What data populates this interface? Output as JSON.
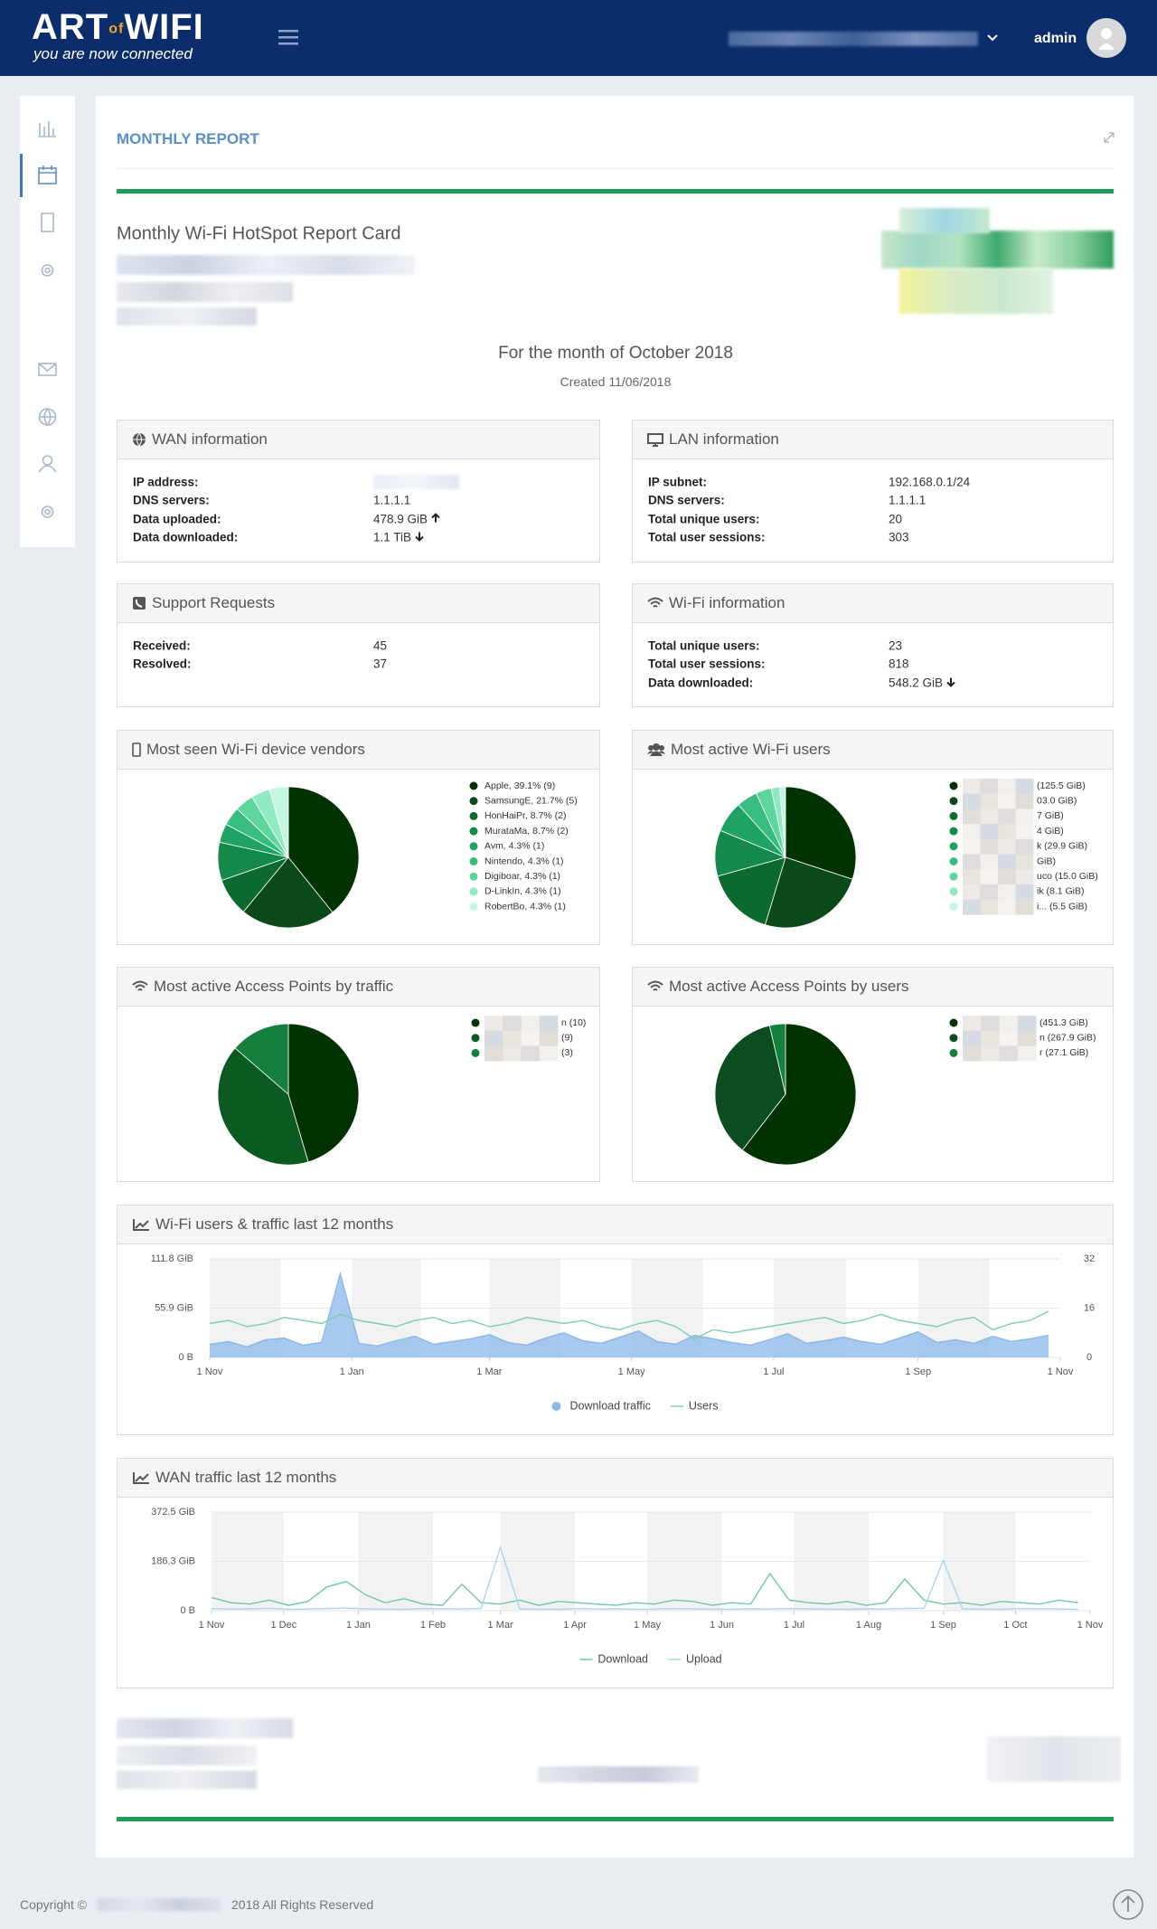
{
  "header": {
    "logo": [
      "ART",
      "of",
      "WIFI"
    ],
    "tagline": "you are now connected",
    "user": "admin"
  },
  "report": {
    "title": "MONTHLY REPORT",
    "card_title": "Monthly Wi-Fi HotSpot Report Card",
    "month": "For the month of October 2018",
    "created": "Created 11/06/2018"
  },
  "wan": {
    "title": "WAN information",
    "rows": [
      {
        "label": "IP address:"
      },
      {
        "label": "DNS servers:",
        "value": "1.1.1.1"
      },
      {
        "label": "Data uploaded:",
        "value": "478.9 GiB"
      },
      {
        "label": "Data downloaded:",
        "value": "1.1 TiB"
      }
    ]
  },
  "lan": {
    "title": "LAN information",
    "rows": [
      {
        "label": "IP subnet:",
        "value": "192.168.0.1/24"
      },
      {
        "label": "DNS servers:",
        "value": "1.1.1.1"
      },
      {
        "label": "Total unique users:",
        "value": "20"
      },
      {
        "label": "Total user sessions:",
        "value": "303"
      }
    ]
  },
  "support": {
    "title": "Support Requests",
    "rows": [
      {
        "label": "Received:",
        "value": "45"
      },
      {
        "label": "Resolved:",
        "value": "37"
      }
    ]
  },
  "wifi": {
    "title": "Wi-Fi information",
    "rows": [
      {
        "label": "Total unique users:",
        "value": "23"
      },
      {
        "label": "Total user sessions:",
        "value": "818"
      },
      {
        "label": "Data downloaded:",
        "value": "548.2 GiB"
      }
    ]
  },
  "chart_data": [
    {
      "type": "pie",
      "title": "Most seen Wi-Fi device vendors",
      "categories": [
        "Apple, 39.1% (9)",
        "SamsungE, 21.7% (5)",
        "HonHaiPr, 8.7% (2)",
        "MurataMa, 8.7% (2)",
        "Avm, 4.3% (1)",
        "Nintendo, 4.3% (1)",
        "Digiboar, 4.3% (1)",
        "D-LinkIn, 4.3% (1)",
        "RobertBo, 4.3% (1)"
      ],
      "values": [
        39.1,
        21.7,
        8.7,
        8.7,
        4.3,
        4.3,
        4.3,
        4.3,
        4.3
      ],
      "colors": [
        "#003300",
        "#0a4a1a",
        "#0d6a2e",
        "#13894a",
        "#1fa264",
        "#37bd80",
        "#5fd59e",
        "#8fe9c1",
        "#c4f7e2"
      ]
    },
    {
      "type": "pie",
      "title": "Most active Wi-Fi users",
      "categories": [
        "(125.5 GiB)",
        "03.0 GiB)",
        "7 GiB)",
        "4 GiB)",
        "k (29.9 GiB)",
        "GiB)",
        "uco (15.0 GiB)",
        "ik (8.1 GiB)",
        "i... (5.5 GiB)"
      ],
      "values": [
        125.5,
        103.0,
        67,
        44,
        29.9,
        20,
        15.0,
        8.1,
        5.5
      ],
      "colors": [
        "#003300",
        "#0a4a1a",
        "#0d6a2e",
        "#13894a",
        "#1fa264",
        "#37bd80",
        "#5fd59e",
        "#8fe9c1",
        "#c4f7e2"
      ]
    },
    {
      "type": "pie",
      "title": "Most active Access Points by traffic",
      "categories": [
        "n (10)",
        "(9)",
        "(3)"
      ],
      "values": [
        10,
        9,
        3
      ],
      "colors": [
        "#003300",
        "#0b5a22",
        "#15803d"
      ]
    },
    {
      "type": "pie",
      "title": "Most active Access Points by users",
      "categories": [
        "(451.3 GiB)",
        "n (267.9 GiB)",
        "r (27.1 GiB)"
      ],
      "values": [
        451.3,
        267.9,
        27.1
      ],
      "colors": [
        "#003300",
        "#0b4d1f",
        "#15803d"
      ]
    },
    {
      "type": "line",
      "title": "Wi-Fi users & traffic last 12 months",
      "grid": true,
      "x": [
        0,
        8,
        16,
        24,
        32,
        40,
        48,
        56,
        64,
        72,
        80,
        88,
        96,
        104,
        112,
        120,
        128,
        136,
        144,
        152,
        160,
        168,
        176,
        184,
        192,
        200,
        208,
        216,
        224,
        232,
        240,
        248,
        256,
        264,
        272,
        280,
        288,
        296,
        304,
        312,
        320,
        328,
        336,
        344,
        352,
        360
      ],
      "xlim": [
        0,
        365
      ],
      "xticks": [
        {
          "value": 0,
          "label": "1 Nov"
        },
        {
          "value": 61,
          "label": "1 Jan"
        },
        {
          "value": 120,
          "label": "1 Mar"
        },
        {
          "value": 181,
          "label": "1 May"
        },
        {
          "value": 242,
          "label": "1 Jul"
        },
        {
          "value": 304,
          "label": "1 Sep"
        },
        {
          "value": 365,
          "label": "1 Nov"
        }
      ],
      "ylim": [
        0,
        111.8
      ],
      "yticks": [
        {
          "value": 0,
          "label": "0 B"
        },
        {
          "value": 55.9,
          "label": "55.9 GiB"
        },
        {
          "value": 111.8,
          "label": "111.8 GiB"
        }
      ],
      "y2lim": [
        0,
        32
      ],
      "y2ticks": [
        0,
        16,
        32
      ],
      "series": [
        {
          "name": "Download traffic",
          "style": "area",
          "color": "#8ab8e8",
          "values": [
            15,
            18,
            12,
            20,
            22,
            14,
            17,
            95,
            16,
            13,
            19,
            24,
            15,
            18,
            21,
            26,
            17,
            14,
            22,
            28,
            19,
            16,
            23,
            30,
            18,
            15,
            25,
            21,
            17,
            14,
            20,
            27,
            16,
            19,
            23,
            18,
            15,
            22,
            29,
            17,
            20,
            16,
            24,
            18,
            21,
            25
          ]
        },
        {
          "name": "Users",
          "style": "line",
          "axis": "y2",
          "color": "#7ccfae",
          "values": [
            11,
            12,
            10,
            11,
            13,
            12,
            11,
            14,
            12,
            11,
            10,
            12,
            13,
            11,
            12,
            10,
            11,
            13,
            12,
            11,
            12,
            10,
            9,
            11,
            12,
            10,
            6,
            9,
            8,
            9,
            10,
            11,
            12,
            13,
            11,
            12,
            14,
            12,
            11,
            10,
            12,
            13,
            9,
            11,
            12,
            15
          ]
        }
      ]
    },
    {
      "type": "line",
      "title": "WAN traffic last 12 months",
      "grid": true,
      "x": [
        0,
        8,
        16,
        24,
        32,
        40,
        48,
        56,
        64,
        72,
        80,
        88,
        96,
        104,
        112,
        120,
        128,
        136,
        144,
        152,
        160,
        168,
        176,
        184,
        192,
        200,
        208,
        216,
        224,
        232,
        240,
        248,
        256,
        264,
        272,
        280,
        288,
        296,
        304,
        312,
        320,
        328,
        336,
        344,
        352,
        360
      ],
      "xlim": [
        0,
        365
      ],
      "xticks": [
        {
          "value": 0,
          "label": "1 Nov"
        },
        {
          "value": 30,
          "label": "1 Dec"
        },
        {
          "value": 61,
          "label": "1 Jan"
        },
        {
          "value": 92,
          "label": "1 Feb"
        },
        {
          "value": 120,
          "label": "1 Mar"
        },
        {
          "value": 151,
          "label": "1 Apr"
        },
        {
          "value": 181,
          "label": "1 May"
        },
        {
          "value": 212,
          "label": "1 Jun"
        },
        {
          "value": 242,
          "label": "1 Jul"
        },
        {
          "value": 273,
          "label": "1 Aug"
        },
        {
          "value": 304,
          "label": "1 Sep"
        },
        {
          "value": 334,
          "label": "1 Oct"
        },
        {
          "value": 365,
          "label": "1 Nov"
        }
      ],
      "ylim": [
        0,
        372.5
      ],
      "yticks": [
        {
          "value": 0,
          "label": "0 B"
        },
        {
          "value": 186.3,
          "label": "186.3 GiB"
        },
        {
          "value": 372.5,
          "label": "372.5 GiB"
        }
      ],
      "series": [
        {
          "name": "Download",
          "style": "line",
          "color": "#6cc9a3",
          "values": [
            50,
            30,
            25,
            40,
            20,
            35,
            90,
            110,
            60,
            30,
            45,
            25,
            20,
            100,
            30,
            25,
            40,
            20,
            35,
            30,
            25,
            20,
            30,
            25,
            40,
            35,
            20,
            30,
            25,
            140,
            40,
            30,
            25,
            35,
            20,
            30,
            120,
            40,
            25,
            30,
            20,
            35,
            30,
            25,
            40,
            30
          ]
        },
        {
          "name": "Upload",
          "style": "line",
          "color": "#aad6ef",
          "values": [
            8,
            6,
            7,
            9,
            5,
            6,
            8,
            10,
            7,
            6,
            5,
            8,
            7,
            6,
            9,
            240,
            7,
            6,
            5,
            8,
            6,
            7,
            5,
            6,
            8,
            7,
            6,
            5,
            7,
            6,
            8,
            7,
            6,
            5,
            7,
            6,
            8,
            9,
            190,
            7,
            6,
            5,
            8,
            7,
            6,
            5
          ]
        }
      ]
    }
  ],
  "footer": {
    "copyright": "Copyright ©",
    "rights": "2018 All Rights Reserved"
  }
}
